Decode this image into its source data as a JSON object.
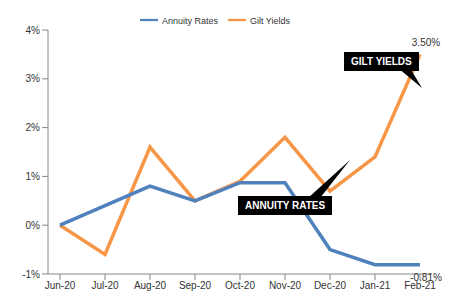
{
  "chart_data": {
    "type": "line",
    "categories": [
      "Jun-20",
      "Jul-20",
      "Aug-20",
      "Sep-20",
      "Oct-20",
      "Nov-20",
      "Dec-20",
      "Jan-21",
      "Feb-21"
    ],
    "series": [
      {
        "name": "Gilt Yields",
        "color": "#F79646",
        "values": [
          0,
          -0.6,
          1.6,
          0.5,
          0.9,
          1.8,
          0.7,
          1.4,
          3.5
        ],
        "value_labels": [
          null,
          null,
          null,
          null,
          null,
          null,
          null,
          null,
          "3.50%"
        ]
      },
      {
        "name": "Annuity Rates",
        "color": "#4F81BD",
        "values": [
          0,
          0.4,
          0.8,
          0.5,
          0.87,
          0.87,
          -0.5,
          -0.81,
          -0.81
        ],
        "value_labels": [
          null,
          null,
          null,
          null,
          null,
          null,
          null,
          null,
          "-0.81%"
        ]
      }
    ],
    "ylim": [
      -1,
      4
    ],
    "yticks": [
      {
        "value": -1,
        "label": "-1%"
      },
      {
        "value": 0,
        "label": "0%"
      },
      {
        "value": 1,
        "label": "1%"
      },
      {
        "value": 2,
        "label": "2%"
      },
      {
        "value": 3,
        "label": "3%"
      },
      {
        "value": 4,
        "label": "4%"
      }
    ],
    "grid": false,
    "legend": "top",
    "annotations": [
      "GILT YIELDS",
      "ANNUITY RATES"
    ]
  }
}
